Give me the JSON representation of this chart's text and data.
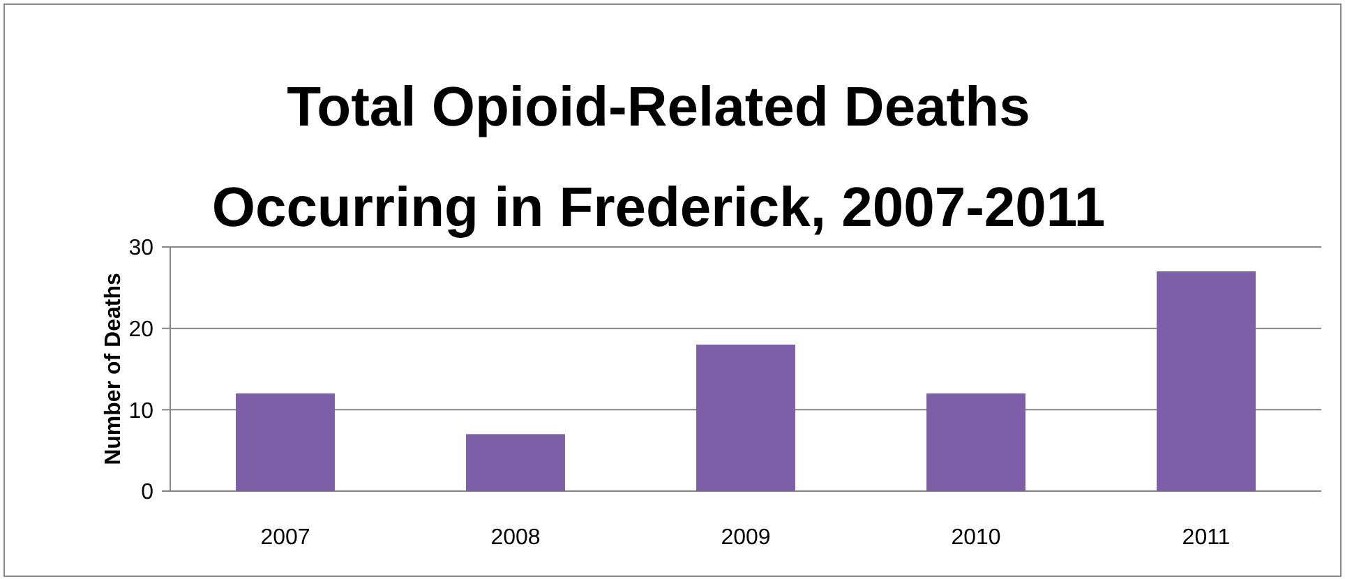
{
  "chart_data": {
    "type": "bar",
    "title": "Total Opioid-Related Deaths Occurring in Frederick, 2007-2011",
    "ylabel": "Number of Deaths",
    "categories": [
      "2007",
      "2008",
      "2009",
      "2010",
      "2011"
    ],
    "values": [
      12,
      7,
      18,
      12,
      27
    ],
    "color": "#7e5ea6",
    "ylim": [
      0,
      30
    ],
    "yticks": [
      0,
      10,
      20,
      30
    ],
    "grid": "y"
  }
}
